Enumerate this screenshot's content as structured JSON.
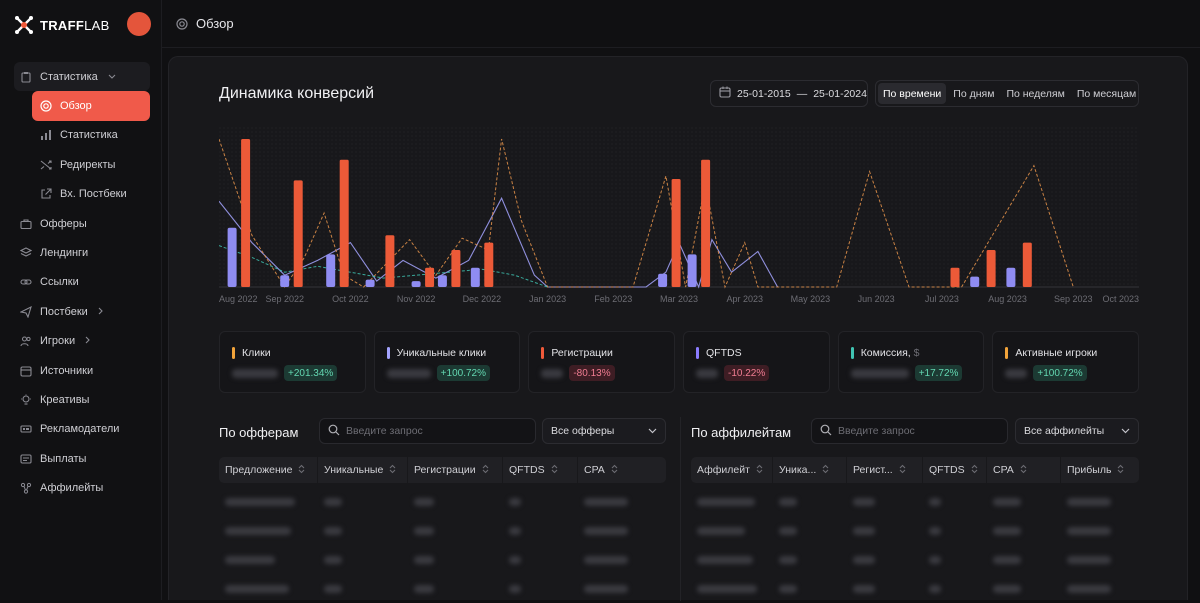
{
  "brand": {
    "bold": "TRAFF",
    "light": "LAB"
  },
  "sidebar": {
    "items": [
      {
        "label": "Статистика",
        "icon": "clipboard-icon",
        "expanded": true
      },
      {
        "label": "Обзор",
        "icon": "target-icon",
        "active": true,
        "sub": true
      },
      {
        "label": "Статистика",
        "icon": "bar-chart-icon",
        "sub": true
      },
      {
        "label": "Редиректы",
        "icon": "shuffle-icon",
        "sub": true
      },
      {
        "label": "Вх. Постбеки",
        "icon": "external-link-icon",
        "sub": true
      },
      {
        "label": "Офферы",
        "icon": "briefcase-icon"
      },
      {
        "label": "Лендинги",
        "icon": "layers-icon"
      },
      {
        "label": "Ссылки",
        "icon": "link-icon"
      },
      {
        "label": "Постбеки",
        "icon": "send-icon",
        "chevron": true
      },
      {
        "label": "Игроки",
        "icon": "users-icon",
        "chevron": true
      },
      {
        "label": "Источники",
        "icon": "calendar-icon"
      },
      {
        "label": "Креативы",
        "icon": "bulb-icon"
      },
      {
        "label": "Рекламодатели",
        "icon": "ad-icon"
      },
      {
        "label": "Выплаты",
        "icon": "wallet-icon"
      },
      {
        "label": "Аффилейты",
        "icon": "network-icon"
      }
    ]
  },
  "topbar": {
    "title": "Обзор"
  },
  "chart_section": {
    "title": "Динамика конверсий",
    "date_from": "25-01-2015",
    "date_sep": "—",
    "date_to": "25-01-2024",
    "tabs": [
      "По времени",
      "По дням",
      "По неделям",
      "По месяцам"
    ],
    "active_tab": 0
  },
  "chart_data": {
    "type": "bar",
    "x_labels": [
      "Aug 2022",
      "Sep 2022",
      "Oct 2022",
      "Nov 2022",
      "Dec 2022",
      "Jan 2023",
      "Feb 2023",
      "Mar 2023",
      "Apr 2023",
      "May 2023",
      "Jun 2023",
      "Jul 2023",
      "Aug 2023",
      "Sep 2023",
      "Oct 2023"
    ],
    "ylim": [
      0,
      100
    ],
    "bars": [
      {
        "t": 0.2,
        "purple": 40,
        "orange": 100
      },
      {
        "t": 1.0,
        "purple": 8,
        "orange": 72
      },
      {
        "t": 1.7,
        "purple": 22,
        "orange": 86
      },
      {
        "t": 2.3,
        "purple": 5,
        "orange": 0
      },
      {
        "t": 2.6,
        "purple": 0,
        "orange": 35
      },
      {
        "t": 3.0,
        "purple": 4,
        "orange": 13
      },
      {
        "t": 3.4,
        "purple": 8,
        "orange": 25
      },
      {
        "t": 3.9,
        "purple": 13,
        "orange": 30
      },
      {
        "t": 6.75,
        "purple": 9,
        "orange": 73
      },
      {
        "t": 7.2,
        "purple": 22,
        "orange": 86
      },
      {
        "t": 11.2,
        "purple": 0,
        "orange": 13
      },
      {
        "t": 11.5,
        "purple": 7,
        "orange": 0
      },
      {
        "t": 11.75,
        "purple": 0,
        "orange": 25
      },
      {
        "t": 12.05,
        "purple": 13,
        "orange": 0
      },
      {
        "t": 12.3,
        "purple": 0,
        "orange": 30
      }
    ],
    "line_series": [
      {
        "name": "",
        "color": "#a4a4ff",
        "style": "solid",
        "points": [
          [
            0.0,
            58
          ],
          [
            0.5,
            30
          ],
          [
            1.0,
            8
          ],
          [
            1.5,
            18
          ],
          [
            2.0,
            30
          ],
          [
            2.4,
            4
          ],
          [
            2.8,
            18
          ],
          [
            3.3,
            6
          ],
          [
            3.8,
            18
          ],
          [
            4.3,
            60
          ],
          [
            4.8,
            8
          ],
          [
            5.0,
            0
          ],
          [
            6.5,
            0
          ],
          [
            6.8,
            10
          ],
          [
            7.0,
            30
          ],
          [
            7.3,
            0
          ],
          [
            7.5,
            32
          ],
          [
            7.8,
            10
          ],
          [
            8.2,
            24
          ],
          [
            8.5,
            0
          ]
        ]
      },
      {
        "name": "",
        "color": "#e9954b",
        "style": "dashed",
        "points": [
          [
            0.0,
            100
          ],
          [
            0.5,
            35
          ],
          [
            1.0,
            0
          ],
          [
            1.3,
            20
          ],
          [
            1.6,
            50
          ],
          [
            1.9,
            8
          ],
          [
            2.2,
            0
          ],
          [
            2.9,
            32
          ],
          [
            3.3,
            8
          ],
          [
            3.7,
            33
          ],
          [
            4.1,
            25
          ],
          [
            4.3,
            100
          ],
          [
            4.6,
            45
          ],
          [
            5.0,
            0
          ],
          [
            6.3,
            0
          ],
          [
            6.8,
            75
          ],
          [
            7.1,
            0
          ],
          [
            7.4,
            70
          ],
          [
            7.7,
            0
          ],
          [
            8.0,
            30
          ],
          [
            8.2,
            0
          ],
          [
            8.6,
            0
          ],
          [
            9.4,
            0
          ],
          [
            9.9,
            78
          ],
          [
            10.5,
            0
          ],
          [
            11.3,
            0
          ],
          [
            12.4,
            82
          ],
          [
            13.0,
            0
          ]
        ]
      },
      {
        "name": "",
        "color": "#40c4b3",
        "style": "dashed",
        "points": [
          [
            0.0,
            28
          ],
          [
            0.5,
            20
          ],
          [
            1.0,
            10
          ],
          [
            1.5,
            14
          ],
          [
            2.0,
            10
          ],
          [
            2.5,
            6
          ],
          [
            3.0,
            8
          ],
          [
            3.5,
            10
          ],
          [
            4.0,
            12
          ],
          [
            4.5,
            8
          ],
          [
            5.0,
            0
          ]
        ]
      }
    ]
  },
  "stats": [
    {
      "label": "Клики",
      "label_suffix": "",
      "color": "#f1a33a",
      "change": "+201.34%",
      "trend": "up"
    },
    {
      "label": "Уникальные клики",
      "label_suffix": "",
      "color": "#a4a4ff",
      "change": "+100.72%",
      "trend": "up"
    },
    {
      "label": "Регистрации",
      "label_suffix": "",
      "color": "#f05a3a",
      "change": "-80.13%",
      "trend": "down"
    },
    {
      "label": "QFTDS",
      "label_suffix": "",
      "color": "#8b7cff",
      "change": "-10.22%",
      "trend": "down"
    },
    {
      "label": "Комиссия,",
      "label_suffix": "$",
      "color": "#40c4b3",
      "change": "+17.72%",
      "trend": "up"
    },
    {
      "label": "Активные игроки",
      "label_suffix": "",
      "color": "#f1a33a",
      "change": "+100.72%",
      "trend": "up"
    }
  ],
  "offers": {
    "title": "По офферам",
    "search_placeholder": "Введите запрос",
    "select_value": "Все офферы",
    "columns": [
      "Предложение",
      "Уникальные",
      "Регистрации",
      "QFTDS",
      "CPA"
    ]
  },
  "affiliates": {
    "title": "По аффилейтам",
    "search_placeholder": "Введите запрос",
    "select_value": "Все аффилейты",
    "columns": [
      "Аффилейт",
      "Уника...",
      "Регист...",
      "QFTDS",
      "CPA",
      "Прибыль"
    ]
  }
}
